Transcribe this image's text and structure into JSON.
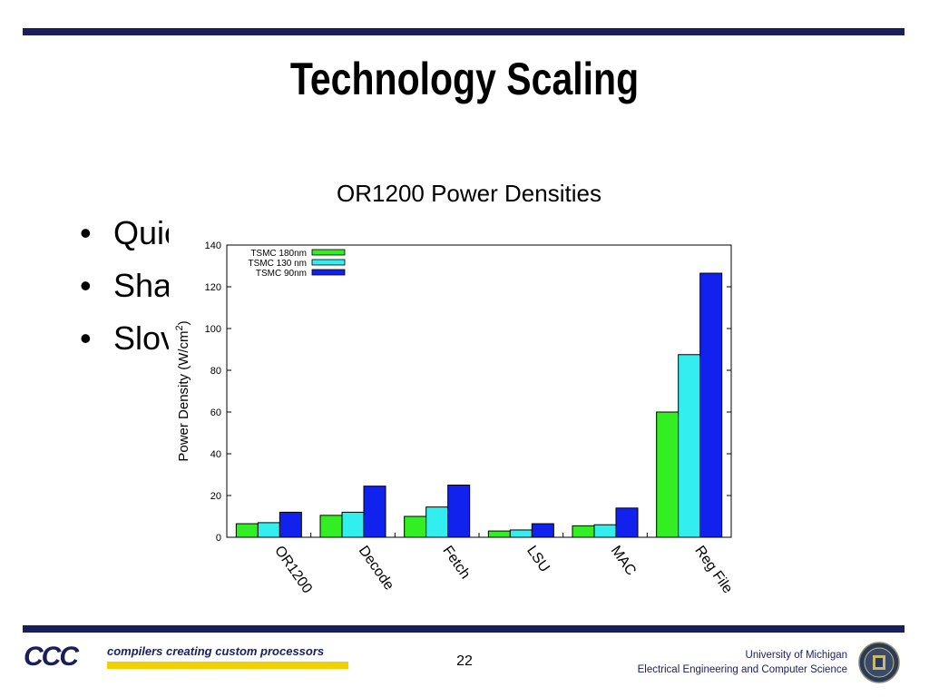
{
  "slide": {
    "title": "Technology Scaling",
    "bullets": [
      "Quickly shrinking feature sizes",
      "Sha",
      "Slov"
    ],
    "page_number": "22"
  },
  "footer": {
    "logo_text": "CCC",
    "tagline": "compilers creating custom processors",
    "institution": "University of Michigan",
    "department": "Electrical Engineering and Computer Science",
    "accent_color": "#1a1f5c",
    "logo_bar_color": "#f0d000"
  },
  "chart_data": {
    "type": "bar",
    "title": "OR1200 Power Densities",
    "ylabel": "Power Density (W/cm²)",
    "ylabel_base": "Power Density (W/cm",
    "ylabel_sup": "2",
    "ylabel_tail": ")",
    "xlabel": "",
    "ylim": [
      0,
      140
    ],
    "yticks": [
      0,
      20,
      40,
      60,
      80,
      100,
      120,
      140
    ],
    "grid": false,
    "legend_position": "top-left",
    "categories": [
      "OR1200",
      "Decode",
      "Fetch",
      "LSU",
      "MAC",
      "Reg File"
    ],
    "series": [
      {
        "name": "TSMC 180nm",
        "color": "#33ee22",
        "values": [
          6.5,
          10.5,
          10,
          3,
          5.5,
          60
        ]
      },
      {
        "name": "TSMC 130 nm",
        "color": "#33eeee",
        "values": [
          7,
          12,
          14.5,
          3.5,
          6,
          87.5
        ]
      },
      {
        "name": "TSMC 90nm",
        "color": "#1122ee",
        "values": [
          12,
          24.5,
          25,
          6.5,
          14,
          126.5
        ]
      }
    ]
  }
}
